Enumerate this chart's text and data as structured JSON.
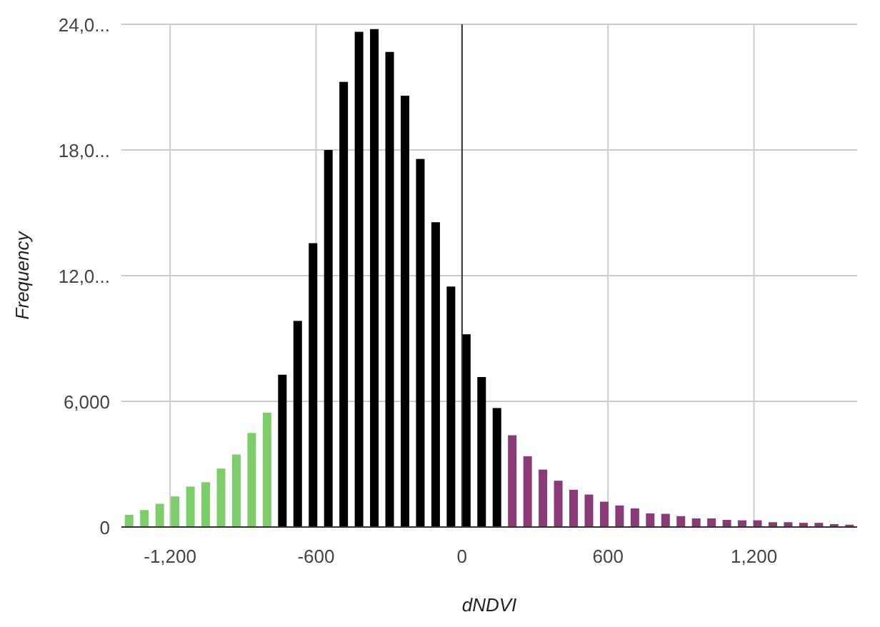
{
  "chart_data": {
    "type": "histogram",
    "xlabel": "dNDVI",
    "ylabel": "Frequency",
    "bins": [
      -1400,
      -1337,
      -1274,
      -1211,
      -1148,
      -1085,
      -1022,
      -959,
      -896,
      -833,
      -770,
      -707,
      -644,
      -581,
      -518,
      -455,
      -392,
      -329,
      -266,
      -203,
      -140,
      -77,
      -14,
      49,
      112,
      175,
      238,
      301,
      364,
      427,
      490,
      553,
      616,
      679,
      742,
      805,
      868,
      931,
      994,
      1057,
      1120,
      1183,
      1246,
      1309,
      1372,
      1435,
      1498,
      1561,
      1624
    ],
    "values": [
      580,
      810,
      1110,
      1460,
      1930,
      2140,
      2790,
      3460,
      4490,
      5460,
      7270,
      9840,
      13550,
      18000,
      21250,
      23640,
      23770,
      22680,
      20590,
      17570,
      14550,
      11480,
      9200,
      7160,
      5680,
      4380,
      3380,
      2740,
      2210,
      1780,
      1550,
      1210,
      1030,
      890,
      650,
      630,
      520,
      410,
      410,
      340,
      320,
      320,
      230,
      230,
      200,
      200,
      140,
      110
    ],
    "colors": [
      "#7dcd6b",
      "#7dcd6b",
      "#7dcd6b",
      "#7dcd6b",
      "#7dcd6b",
      "#7dcd6b",
      "#7dcd6b",
      "#7dcd6b",
      "#7dcd6b",
      "#7dcd6b",
      "#000000",
      "#000000",
      "#000000",
      "#000000",
      "#000000",
      "#000000",
      "#000000",
      "#000000",
      "#000000",
      "#000000",
      "#000000",
      "#000000",
      "#000000",
      "#000000",
      "#000000",
      "#8b3a78",
      "#8b3a78",
      "#8b3a78",
      "#8b3a78",
      "#8b3a78",
      "#8b3a78",
      "#8b3a78",
      "#8b3a78",
      "#8b3a78",
      "#8b3a78",
      "#8b3a78",
      "#8b3a78",
      "#8b3a78",
      "#8b3a78",
      "#8b3a78",
      "#8b3a78",
      "#8b3a78",
      "#8b3a78",
      "#8b3a78",
      "#8b3a78",
      "#8b3a78",
      "#8b3a78",
      "#8b3a78"
    ],
    "xlim": [
      -1400,
      1624
    ],
    "xticks": [
      {
        "value": -1200,
        "label": "-1,200"
      },
      -600,
      0,
      600,
      {
        "value": 1200,
        "label": "1,200"
      }
    ],
    "ylim": [
      0,
      24000
    ],
    "yticks": [
      0,
      {
        "value": 6000,
        "label": "6,000"
      },
      {
        "value": 12000,
        "label": "12,0..."
      },
      {
        "value": 18000,
        "label": "18,0..."
      },
      {
        "value": 24000,
        "label": "24,0..."
      }
    ],
    "ref_lines": [
      {
        "axis": "x",
        "value": 0,
        "color": "#333333"
      }
    ],
    "grid": true
  }
}
